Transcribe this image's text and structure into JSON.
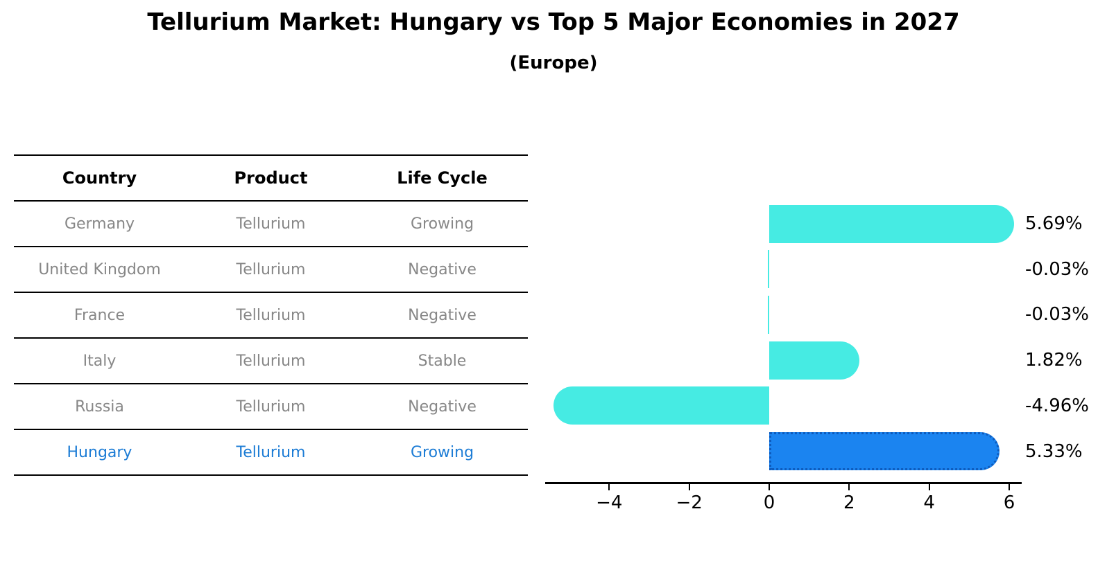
{
  "title": "Tellurium Market: Hungary vs Top 5 Major Economies in 2027",
  "subtitle": "(Europe)",
  "table": {
    "headers": [
      "Country",
      "Product",
      "Life Cycle"
    ],
    "rows": [
      {
        "country": "Germany",
        "product": "Tellurium",
        "life_cycle": "Growing",
        "highlight": false
      },
      {
        "country": "United Kingdom",
        "product": "Tellurium",
        "life_cycle": "Negative",
        "highlight": false
      },
      {
        "country": "France",
        "product": "Tellurium",
        "life_cycle": "Negative",
        "highlight": false
      },
      {
        "country": "Italy",
        "product": "Tellurium",
        "life_cycle": "Stable",
        "highlight": false
      },
      {
        "country": "Russia",
        "product": "Tellurium",
        "life_cycle": "Negative",
        "highlight": false
      },
      {
        "country": "Hungary",
        "product": "Tellurium",
        "life_cycle": "Growing",
        "highlight": true
      }
    ]
  },
  "chart_data": {
    "type": "bar",
    "orientation": "horizontal",
    "title": "Tellurium Market: Hungary vs Top 5 Major Economies in 2027 (Europe)",
    "categories": [
      "Germany",
      "United Kingdom",
      "France",
      "Italy",
      "Russia",
      "Hungary"
    ],
    "values": [
      5.69,
      -0.03,
      -0.03,
      1.82,
      -4.96,
      5.33
    ],
    "value_labels": [
      "5.69%",
      "-0.03%",
      "-0.03%",
      "1.82%",
      "-4.96%",
      "5.33%"
    ],
    "xtick_labels": [
      "−4",
      "−2",
      "0",
      "2",
      "4",
      "6"
    ],
    "xtick_values": [
      -4,
      -2,
      0,
      2,
      4,
      6
    ],
    "xlim": [
      -5.6,
      6.3
    ],
    "xlabel": "",
    "ylabel": "",
    "grid": false,
    "legend_position": "none",
    "highlight_index": 5,
    "bar_color": "#46EBE3",
    "highlight_bar_color": "#1B84F0",
    "highlight_border_color": "#0D5BBD",
    "highlight_text_color": "#1C7CD5"
  },
  "colors": {
    "background": "#ffffff",
    "text": "#000000",
    "table_text": "#878787",
    "axis": "#000000"
  }
}
